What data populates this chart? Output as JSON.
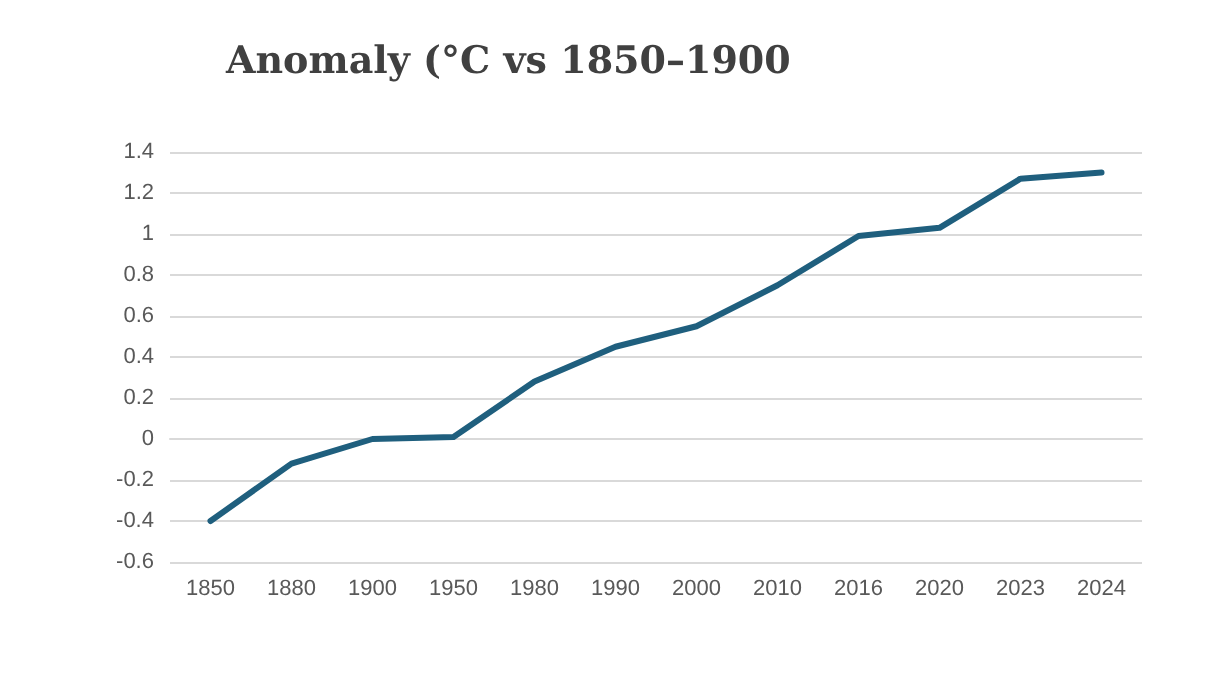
{
  "chart_data": {
    "type": "line",
    "title": "Anomaly (°C vs 1850–1900",
    "categories": [
      "1850",
      "1880",
      "1900",
      "1950",
      "1980",
      "1990",
      "2000",
      "2010",
      "2016",
      "2020",
      "2023",
      "2024"
    ],
    "series": [
      {
        "color": "#1f5f7e",
        "values": [
          -0.4,
          -0.12,
          0,
          0.01,
          0.28,
          0.45,
          0.55,
          0.75,
          0.99,
          1.03,
          1.27,
          1.3
        ]
      }
    ],
    "ylim": [
      -0.6,
      1.4
    ],
    "yticks": [
      -0.6,
      -0.4,
      -0.2,
      0,
      0.2,
      0.4,
      0.6,
      0.8,
      1,
      1.2,
      1.4
    ],
    "grid": "y",
    "marker": "none",
    "line_style": "solid"
  }
}
